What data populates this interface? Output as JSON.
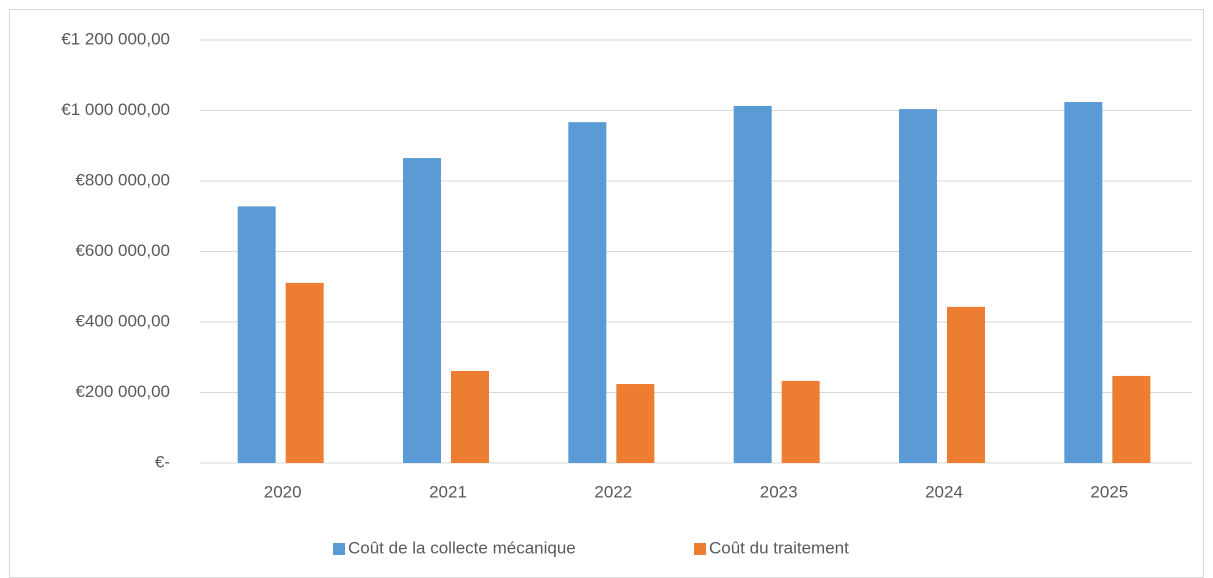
{
  "chart_data": {
    "type": "bar",
    "categories": [
      "2020",
      "2021",
      "2022",
      "2023",
      "2024",
      "2025"
    ],
    "series": [
      {
        "name": "Coût de la collecte mécanique",
        "color": "#5b9bd5",
        "values": [
          728000,
          865000,
          967000,
          1013000,
          1004000,
          1024000
        ]
      },
      {
        "name": "Coût du traitement",
        "color": "#ed7d31",
        "values": [
          511000,
          261000,
          224000,
          233000,
          443000,
          247000
        ]
      }
    ],
    "ylim": [
      0,
      1200000
    ],
    "yticks": [
      {
        "value": 0,
        "label": "€-"
      },
      {
        "value": 200000,
        "label": "€200 000,00"
      },
      {
        "value": 400000,
        "label": "€400 000,00"
      },
      {
        "value": 600000,
        "label": "€600 000,00"
      },
      {
        "value": 800000,
        "label": "€800 000,00"
      },
      {
        "value": 1000000,
        "label": "€1 000 000,00"
      },
      {
        "value": 1200000,
        "label": "€1 200 000,00"
      }
    ],
    "grid": true,
    "legend": "bottom"
  }
}
